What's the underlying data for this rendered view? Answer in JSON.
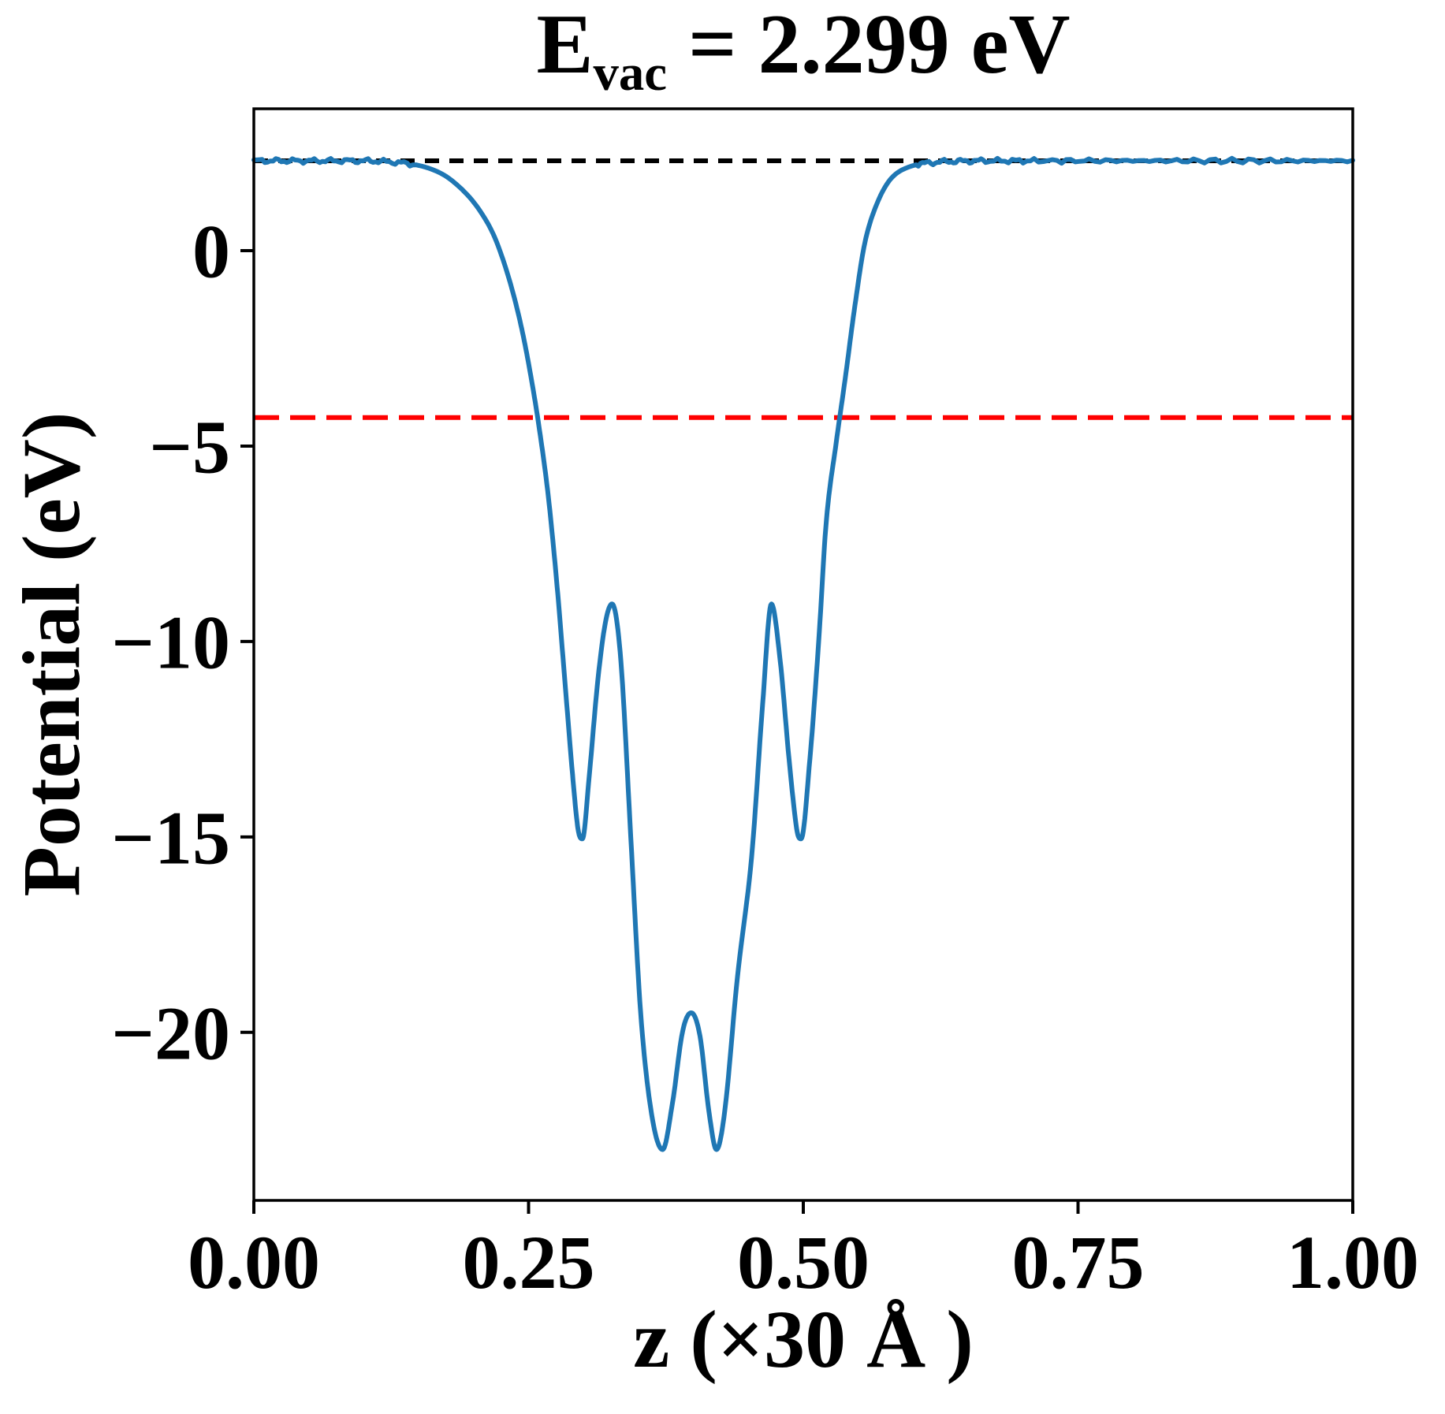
{
  "title": {
    "prefix": "E",
    "subscript": "vac",
    "suffix": " = 2.299 eV"
  },
  "chart_data": {
    "type": "line",
    "title": "E_vac = 2.299 eV",
    "xlabel": "z (×30 Å )",
    "ylabel": "Potential (eV)",
    "xlim": [
      0,
      1
    ],
    "ylim": [
      -24.3,
      3.63
    ],
    "grid": false,
    "legend_position": "none",
    "xticks": {
      "values": [
        0,
        0.25,
        0.5,
        0.75,
        1.0
      ],
      "labels": [
        "0.00",
        "0.25",
        "0.50",
        "0.75",
        "1.00"
      ]
    },
    "yticks": {
      "values": [
        0,
        -5,
        -10,
        -15,
        -20
      ],
      "labels": [
        "0",
        "−5",
        "−10",
        "−15",
        "−20"
      ]
    },
    "hlines": [
      {
        "name": "vacuum-level-line",
        "value": 2.299,
        "color": "#000000",
        "style": "dashed",
        "dash": [
          18,
          13
        ],
        "width": 6
      },
      {
        "name": "fermi-level-line",
        "value": -4.27,
        "color": "#ff0000",
        "style": "dashed",
        "dash": [
          32,
          14
        ],
        "width": 6
      }
    ],
    "series": [
      {
        "name": "planar-averaged-potential",
        "color": "#1f77b4",
        "width": 6,
        "plateau_value": 2.299,
        "plateau_noise_amp": 0.04,
        "x": [
          0.0,
          0.03,
          0.06,
          0.09,
          0.118,
          0.15,
          0.172,
          0.19,
          0.205,
          0.219,
          0.232,
          0.243,
          0.252,
          0.26,
          0.268,
          0.276,
          0.283,
          0.29,
          0.295,
          0.299,
          0.305,
          0.313,
          0.32,
          0.326,
          0.334,
          0.343,
          0.352,
          0.362,
          0.372,
          0.381,
          0.39,
          0.398,
          0.406,
          0.414,
          0.421,
          0.429,
          0.44,
          0.453,
          0.463,
          0.471,
          0.479,
          0.487,
          0.494,
          0.498,
          0.506,
          0.514,
          0.521,
          0.53,
          0.538,
          0.547,
          0.556,
          0.567,
          0.58,
          0.597,
          0.62,
          0.645,
          0.67,
          0.71,
          0.76,
          0.82,
          0.88,
          0.94,
          1.0
        ],
        "y": [
          2.299,
          2.299,
          2.299,
          2.299,
          2.28,
          2.18,
          1.95,
          1.55,
          1.05,
          0.35,
          -0.7,
          -1.9,
          -3.2,
          -4.6,
          -6.3,
          -8.6,
          -11.0,
          -13.4,
          -14.8,
          -15.05,
          -13.5,
          -11.0,
          -9.5,
          -9.04,
          -10.5,
          -15.0,
          -19.5,
          -22.1,
          -23.0,
          -21.8,
          -20.0,
          -19.5,
          -20.1,
          -22.0,
          -23.0,
          -21.9,
          -18.6,
          -15.5,
          -11.6,
          -9.04,
          -10.5,
          -13.0,
          -14.8,
          -15.05,
          -13.0,
          -10.0,
          -6.9,
          -4.9,
          -3.3,
          -1.4,
          0.2,
          1.2,
          1.85,
          2.15,
          2.26,
          2.29,
          2.299,
          2.299,
          2.299,
          2.299,
          2.299,
          2.299,
          2.299
        ]
      }
    ],
    "features": {
      "vacuum_level_eV": 2.299,
      "red_line_level_eV": -4.27,
      "shoulder_peaks_eV": -9.0,
      "side_minima_eV": -15.0,
      "central_local_max_eV": -19.5,
      "deep_minima_eV": -23.0,
      "deep_minima_x": [
        0.372,
        0.421
      ]
    }
  }
}
